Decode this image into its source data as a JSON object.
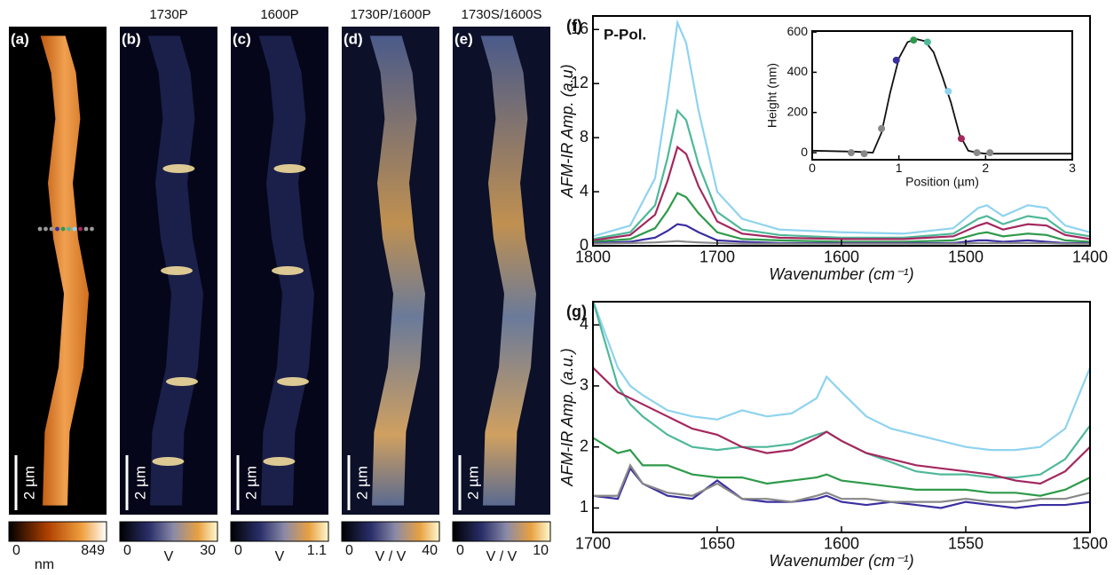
{
  "panels": [
    {
      "label": "(a)",
      "scale_bar": "2 µm",
      "colorbar": {
        "min": 0,
        "max": 849,
        "unit": "nm"
      }
    },
    {
      "label": "(b)",
      "title": "1730P",
      "scale_bar": "2 µm",
      "colorbar": {
        "min": 0,
        "max": 30,
        "unit": "V"
      }
    },
    {
      "label": "(c)",
      "title": "1600P",
      "scale_bar": "2 µm",
      "colorbar": {
        "min": 0,
        "max": 1.1,
        "unit": "V"
      }
    },
    {
      "label": "(d)",
      "title": "1730P/1600P",
      "scale_bar": "2 µm",
      "colorbar": {
        "min": 0,
        "max": 40,
        "unit": "V / V"
      }
    },
    {
      "label": "(e)",
      "title": "1730S/1600S",
      "scale_bar": "2 µm",
      "colorbar": {
        "min": 0,
        "max": 10,
        "unit": "V / V"
      }
    }
  ],
  "chart_data": [
    {
      "type": "line",
      "panel_label": "(f)",
      "annotation": "P-Pol.",
      "xlabel": "Wavenumber (cm⁻¹)",
      "ylabel": "AFM-IR Amp. (a.u)",
      "xlim": [
        1800,
        1400
      ],
      "ylim": [
        0,
        17
      ],
      "xticks": [
        1800,
        1700,
        1600,
        1500,
        1400
      ],
      "yticks": [
        0,
        4,
        8,
        12,
        16
      ],
      "x": [
        1800,
        1770,
        1750,
        1740,
        1732,
        1725,
        1715,
        1700,
        1680,
        1650,
        1600,
        1550,
        1510,
        1490,
        1483,
        1470,
        1450,
        1435,
        1420,
        1400
      ],
      "series": [
        {
          "color": "#8fd3f0",
          "values": [
            0.7,
            1.5,
            5,
            11,
            16.5,
            15,
            10,
            4,
            2,
            1.2,
            1,
            0.9,
            1.3,
            2.8,
            3,
            2.2,
            3,
            2.8,
            1.5,
            1
          ]
        },
        {
          "color": "#4fb89a",
          "values": [
            0.5,
            1,
            3,
            6.5,
            10,
            9.3,
            6,
            2.5,
            1.2,
            0.8,
            0.6,
            0.6,
            0.9,
            2,
            2.2,
            1.6,
            2.2,
            2,
            1,
            0.7
          ]
        },
        {
          "color": "#a3285f",
          "values": [
            0.4,
            0.8,
            2.3,
            4.8,
            7.3,
            6.8,
            4.4,
            1.8,
            0.9,
            0.6,
            0.5,
            0.5,
            0.7,
            1.5,
            1.7,
            1.2,
            1.6,
            1.5,
            0.8,
            0.5
          ]
        },
        {
          "color": "#2e9a4a",
          "values": [
            0.3,
            0.5,
            1.3,
            2.6,
            3.9,
            3.6,
            2.4,
            1,
            0.5,
            0.4,
            0.3,
            0.3,
            0.4,
            0.9,
            1,
            0.7,
            0.9,
            0.8,
            0.4,
            0.3
          ]
        },
        {
          "color": "#3a2fa0",
          "values": [
            0.2,
            0.3,
            0.6,
            1.1,
            1.6,
            1.5,
            1,
            0.4,
            0.3,
            0.2,
            0.2,
            0.2,
            0.2,
            0.4,
            0.4,
            0.3,
            0.4,
            0.3,
            0.2,
            0.2
          ]
        },
        {
          "color": "#888888",
          "values": [
            0.15,
            0.2,
            0.25,
            0.3,
            0.35,
            0.3,
            0.25,
            0.2,
            0.15,
            0.15,
            0.15,
            0.15,
            0.15,
            0.2,
            0.2,
            0.2,
            0.2,
            0.2,
            0.15,
            0.15
          ]
        }
      ]
    },
    {
      "type": "line",
      "xlabel": "Position (µm)",
      "ylabel": "Height (nm)",
      "xlim": [
        0,
        3
      ],
      "ylim": [
        -35,
        605
      ],
      "xticks": [
        0,
        1,
        2,
        3
      ],
      "yticks": [
        0,
        200,
        400,
        600
      ],
      "x": [
        0,
        0.5,
        0.7,
        0.8,
        0.9,
        1.0,
        1.1,
        1.2,
        1.3,
        1.4,
        1.5,
        1.6,
        1.7,
        1.8,
        1.9,
        2.0,
        2.5,
        3
      ],
      "series": [
        {
          "color": "#111111",
          "values": [
            10,
            5,
            0,
            100,
            300,
            470,
            550,
            565,
            555,
            500,
            380,
            250,
            90,
            10,
            0,
            -5,
            -5,
            -5
          ]
        }
      ],
      "markers": {
        "x": [
          0.45,
          0.6,
          0.8,
          0.97,
          1.17,
          1.33,
          1.57,
          1.72,
          1.9,
          2.05
        ],
        "values": [
          0,
          -5,
          120,
          460,
          560,
          550,
          305,
          70,
          0,
          0
        ],
        "colors": [
          "#888888",
          "#888888",
          "#888888",
          "#3a2fa0",
          "#2e9a4a",
          "#4fb89a",
          "#8fd3f0",
          "#a3285f",
          "#888888",
          "#888888"
        ]
      }
    },
    {
      "type": "line",
      "panel_label": "(g)",
      "xlabel": "Wavenumber (cm⁻¹)",
      "ylabel": "AFM-IR Amp. (a.u.)",
      "xlim": [
        1700,
        1500
      ],
      "ylim": [
        0.6,
        4.38
      ],
      "xticks": [
        1700,
        1650,
        1600,
        1550,
        1500
      ],
      "yticks": [
        1,
        2,
        3,
        4
      ],
      "x": [
        1700,
        1690,
        1685,
        1680,
        1670,
        1660,
        1650,
        1640,
        1630,
        1620,
        1610,
        1606,
        1600,
        1590,
        1580,
        1570,
        1560,
        1550,
        1540,
        1530,
        1520,
        1510,
        1500
      ],
      "series": [
        {
          "color": "#8fd3f0",
          "values": [
            4.4,
            3.3,
            3,
            2.85,
            2.6,
            2.5,
            2.45,
            2.6,
            2.5,
            2.55,
            2.8,
            3.15,
            2.9,
            2.5,
            2.3,
            2.2,
            2.1,
            2,
            1.95,
            1.95,
            2.0,
            2.3,
            3.3
          ]
        },
        {
          "color": "#4fb89a",
          "values": [
            4.4,
            3.0,
            2.7,
            2.5,
            2.2,
            2.0,
            1.95,
            2.0,
            2.0,
            2.05,
            2.2,
            2.25,
            2.1,
            1.9,
            1.75,
            1.6,
            1.55,
            1.55,
            1.5,
            1.5,
            1.55,
            1.8,
            2.35
          ]
        },
        {
          "color": "#a3285f",
          "values": [
            3.3,
            2.9,
            2.8,
            2.7,
            2.5,
            2.3,
            2.2,
            2.0,
            1.9,
            1.95,
            2.15,
            2.25,
            2.1,
            1.9,
            1.8,
            1.7,
            1.65,
            1.6,
            1.55,
            1.45,
            1.4,
            1.6,
            2.0
          ]
        },
        {
          "color": "#2e9a4a",
          "values": [
            2.15,
            1.9,
            1.95,
            1.7,
            1.7,
            1.55,
            1.5,
            1.5,
            1.4,
            1.45,
            1.5,
            1.55,
            1.45,
            1.4,
            1.35,
            1.3,
            1.3,
            1.3,
            1.25,
            1.25,
            1.2,
            1.3,
            1.5
          ]
        },
        {
          "color": "#3a2fa0",
          "values": [
            1.2,
            1.15,
            1.65,
            1.4,
            1.2,
            1.15,
            1.45,
            1.15,
            1.1,
            1.1,
            1.15,
            1.2,
            1.1,
            1.05,
            1.1,
            1.05,
            1.0,
            1.1,
            1.05,
            1.0,
            1.05,
            1.05,
            1.1
          ]
        },
        {
          "color": "#888888",
          "values": [
            1.2,
            1.2,
            1.7,
            1.4,
            1.25,
            1.2,
            1.4,
            1.15,
            1.15,
            1.1,
            1.2,
            1.25,
            1.15,
            1.15,
            1.1,
            1.1,
            1.1,
            1.15,
            1.1,
            1.1,
            1.15,
            1.15,
            1.25
          ]
        }
      ]
    }
  ]
}
